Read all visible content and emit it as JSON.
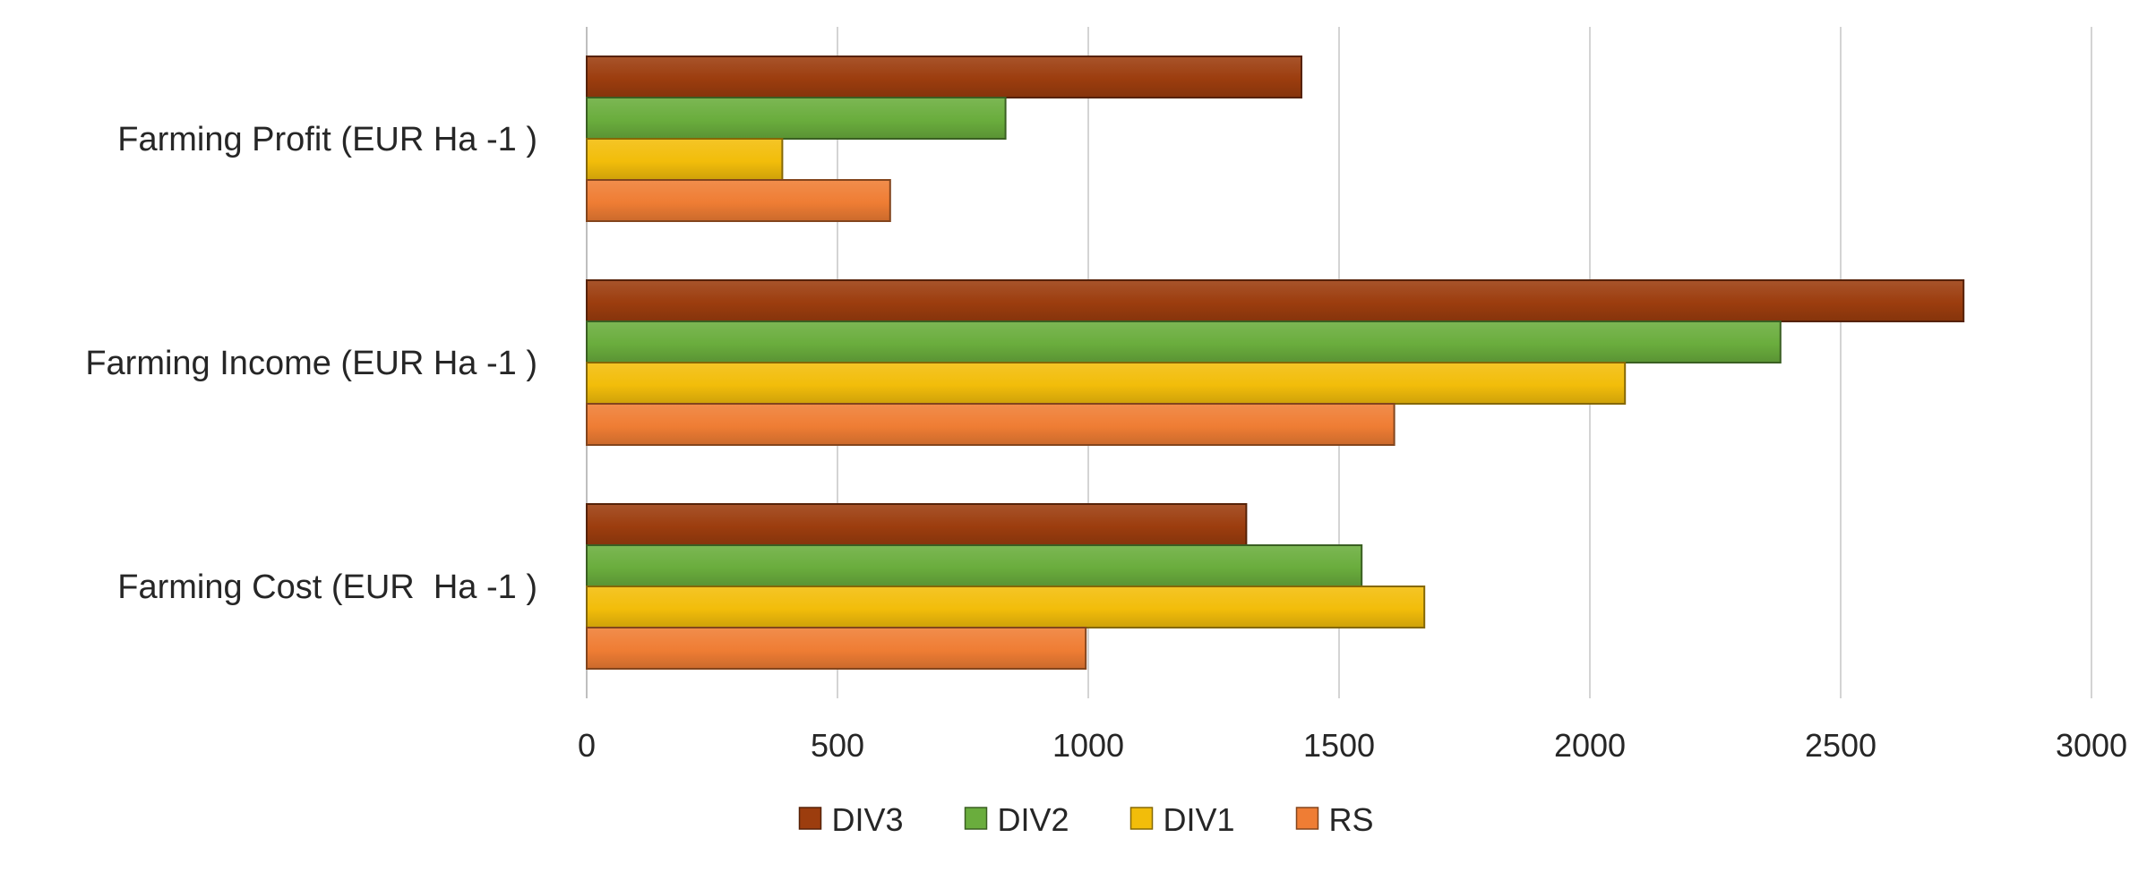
{
  "chart_data": {
    "type": "bar",
    "orientation": "horizontal",
    "categories": [
      "Farming Profit (EUR Ha -1 )",
      "Farming Income (EUR Ha -1 )",
      "Farming Cost (EUR  Ha -1 )"
    ],
    "series": [
      {
        "name": "DIV3",
        "color": "#9c3d0e",
        "values": [
          1425,
          2745,
          1315
        ]
      },
      {
        "name": "DIV2",
        "color": "#6aad3d",
        "values": [
          835,
          2380,
          1545
        ]
      },
      {
        "name": "DIV1",
        "color": "#f2bd0a",
        "values": [
          390,
          2070,
          1670
        ]
      },
      {
        "name": "RS",
        "color": "#ef7d34",
        "values": [
          605,
          1610,
          995
        ]
      }
    ],
    "xlim": [
      0,
      3000
    ],
    "xticks": [
      "0",
      "500",
      "1000",
      "1500",
      "2000",
      "2500",
      "3000"
    ],
    "title": "",
    "xlabel": "",
    "ylabel": "",
    "grid": "vertical",
    "legend": "bottom"
  }
}
